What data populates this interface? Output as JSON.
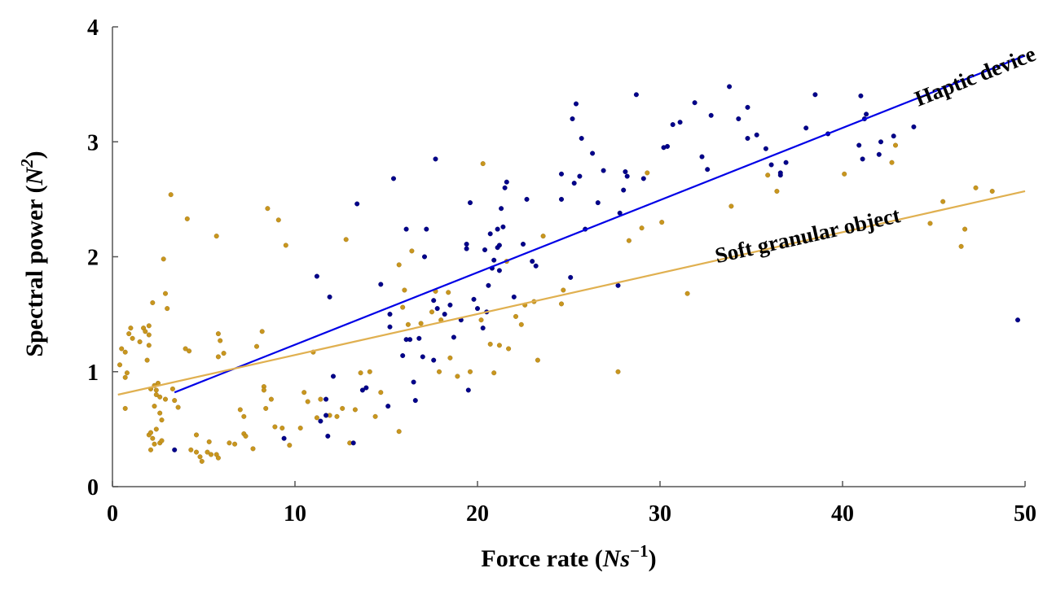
{
  "chart_data": {
    "type": "scatter",
    "title": "",
    "xlabel": "Force rate",
    "xlabel_unit": "Ns",
    "xlabel_unit_exp": "−1",
    "ylabel": "Spectral power",
    "ylabel_unit": "N",
    "ylabel_unit_exp": "2",
    "xlim": [
      0,
      50
    ],
    "ylim": [
      0,
      4
    ],
    "xticks": [
      0,
      10,
      20,
      30,
      40,
      50
    ],
    "yticks": [
      0,
      1,
      2,
      3,
      4
    ],
    "grid": false,
    "legend": "none",
    "series": [
      {
        "name": "Haptic device",
        "color": "#00008B",
        "points": [
          [
            3.4,
            0.32
          ],
          [
            9.4,
            0.42
          ],
          [
            11.2,
            1.83
          ],
          [
            11.8,
            0.44
          ],
          [
            11.7,
            0.62
          ],
          [
            11.9,
            1.65
          ],
          [
            12.1,
            0.96
          ],
          [
            11.4,
            0.57
          ],
          [
            11.7,
            0.76
          ],
          [
            13.2,
            0.38
          ],
          [
            13.4,
            2.46
          ],
          [
            13.7,
            0.84
          ],
          [
            13.9,
            0.86
          ],
          [
            14.7,
            1.76
          ],
          [
            15.1,
            0.7
          ],
          [
            15.2,
            1.5
          ],
          [
            15.2,
            1.39
          ],
          [
            15.4,
            2.68
          ],
          [
            15.9,
            1.14
          ],
          [
            16.1,
            2.24
          ],
          [
            16.1,
            1.28
          ],
          [
            16.3,
            1.28
          ],
          [
            16.5,
            0.91
          ],
          [
            16.6,
            0.75
          ],
          [
            16.8,
            1.29
          ],
          [
            17.0,
            1.13
          ],
          [
            17.1,
            2.0
          ],
          [
            17.2,
            2.24
          ],
          [
            17.6,
            1.62
          ],
          [
            17.7,
            2.85
          ],
          [
            17.6,
            1.1
          ],
          [
            17.8,
            1.55
          ],
          [
            18.2,
            1.5
          ],
          [
            18.5,
            1.58
          ],
          [
            18.7,
            1.3
          ],
          [
            19.1,
            1.45
          ],
          [
            19.4,
            2.11
          ],
          [
            19.4,
            2.07
          ],
          [
            19.5,
            0.84
          ],
          [
            19.6,
            2.47
          ],
          [
            19.8,
            1.63
          ],
          [
            20.0,
            1.55
          ],
          [
            20.3,
            1.38
          ],
          [
            20.4,
            2.06
          ],
          [
            20.5,
            1.52
          ],
          [
            20.6,
            1.75
          ],
          [
            20.7,
            2.2
          ],
          [
            20.8,
            1.9
          ],
          [
            20.9,
            1.97
          ],
          [
            21.1,
            2.08
          ],
          [
            21.1,
            2.24
          ],
          [
            21.2,
            1.88
          ],
          [
            21.2,
            2.1
          ],
          [
            21.3,
            2.42
          ],
          [
            21.4,
            2.26
          ],
          [
            21.5,
            2.6
          ],
          [
            21.6,
            2.65
          ],
          [
            22.0,
            1.65
          ],
          [
            22.5,
            2.11
          ],
          [
            22.7,
            2.5
          ],
          [
            23.0,
            1.96
          ],
          [
            23.2,
            1.92
          ],
          [
            24.6,
            2.72
          ],
          [
            24.6,
            2.5
          ],
          [
            25.1,
            1.82
          ],
          [
            25.3,
            2.64
          ],
          [
            25.4,
            3.33
          ],
          [
            25.2,
            3.2
          ],
          [
            25.6,
            2.7
          ],
          [
            25.7,
            3.03
          ],
          [
            25.9,
            2.24
          ],
          [
            26.3,
            2.9
          ],
          [
            26.6,
            2.47
          ],
          [
            26.9,
            2.75
          ],
          [
            27.7,
            1.75
          ],
          [
            27.8,
            2.38
          ],
          [
            28.0,
            2.58
          ],
          [
            28.1,
            2.74
          ],
          [
            28.2,
            2.7
          ],
          [
            28.7,
            3.41
          ],
          [
            29.1,
            2.68
          ],
          [
            30.2,
            2.95
          ],
          [
            30.4,
            2.96
          ],
          [
            30.7,
            3.15
          ],
          [
            31.1,
            3.17
          ],
          [
            31.9,
            3.34
          ],
          [
            32.3,
            2.87
          ],
          [
            32.6,
            2.76
          ],
          [
            32.8,
            3.23
          ],
          [
            33.8,
            3.48
          ],
          [
            34.3,
            3.2
          ],
          [
            34.8,
            3.3
          ],
          [
            34.8,
            3.03
          ],
          [
            35.3,
            3.06
          ],
          [
            35.8,
            2.94
          ],
          [
            36.1,
            2.8
          ],
          [
            36.6,
            2.71
          ],
          [
            36.9,
            2.82
          ],
          [
            36.6,
            2.73
          ],
          [
            38.0,
            3.12
          ],
          [
            38.5,
            3.41
          ],
          [
            39.2,
            3.07
          ],
          [
            40.9,
            2.97
          ],
          [
            41.0,
            3.4
          ],
          [
            41.1,
            2.85
          ],
          [
            41.2,
            3.2
          ],
          [
            41.3,
            3.24
          ],
          [
            42.0,
            2.89
          ],
          [
            42.1,
            3.0
          ],
          [
            42.8,
            3.05
          ],
          [
            43.9,
            3.13
          ],
          [
            49.6,
            1.45
          ]
        ],
        "fit": {
          "x": [
            3.4,
            50
          ],
          "y": [
            0.82,
            3.75
          ]
        }
      },
      {
        "name": "Soft granular object",
        "color": "#C8961E",
        "points": [
          [
            0.4,
            1.06
          ],
          [
            0.5,
            1.2
          ],
          [
            0.7,
            0.95
          ],
          [
            0.7,
            0.68
          ],
          [
            0.7,
            1.17
          ],
          [
            0.8,
            0.99
          ],
          [
            0.9,
            1.33
          ],
          [
            1.0,
            1.38
          ],
          [
            1.1,
            1.29
          ],
          [
            1.5,
            1.26
          ],
          [
            1.7,
            1.38
          ],
          [
            1.8,
            1.35
          ],
          [
            1.9,
            1.1
          ],
          [
            2.0,
            1.23
          ],
          [
            2.0,
            1.32
          ],
          [
            2.0,
            1.4
          ],
          [
            2.0,
            0.45
          ],
          [
            2.1,
            0.47
          ],
          [
            2.1,
            0.85
          ],
          [
            2.1,
            0.32
          ],
          [
            2.2,
            1.6
          ],
          [
            2.2,
            0.42
          ],
          [
            2.3,
            0.37
          ],
          [
            2.3,
            0.7
          ],
          [
            2.3,
            0.88
          ],
          [
            2.4,
            0.8
          ],
          [
            2.4,
            0.84
          ],
          [
            2.4,
            0.5
          ],
          [
            2.5,
            0.9
          ],
          [
            2.6,
            0.78
          ],
          [
            2.6,
            0.64
          ],
          [
            2.6,
            0.38
          ],
          [
            2.7,
            0.4
          ],
          [
            2.7,
            0.58
          ],
          [
            2.8,
            1.98
          ],
          [
            2.9,
            0.76
          ],
          [
            2.9,
            1.68
          ],
          [
            3.0,
            1.55
          ],
          [
            3.2,
            2.54
          ],
          [
            3.3,
            0.85
          ],
          [
            3.4,
            0.75
          ],
          [
            3.6,
            0.69
          ],
          [
            4.0,
            1.2
          ],
          [
            4.1,
            2.33
          ],
          [
            4.2,
            1.18
          ],
          [
            4.3,
            0.32
          ],
          [
            4.6,
            0.45
          ],
          [
            4.6,
            0.3
          ],
          [
            4.8,
            0.26
          ],
          [
            4.9,
            0.22
          ],
          [
            5.2,
            0.3
          ],
          [
            5.3,
            0.39
          ],
          [
            5.4,
            0.28
          ],
          [
            5.7,
            0.28
          ],
          [
            5.7,
            2.18
          ],
          [
            5.8,
            0.25
          ],
          [
            5.8,
            1.33
          ],
          [
            5.8,
            1.13
          ],
          [
            5.9,
            1.27
          ],
          [
            6.1,
            1.16
          ],
          [
            6.4,
            0.38
          ],
          [
            6.7,
            0.37
          ],
          [
            7.0,
            0.67
          ],
          [
            7.2,
            0.61
          ],
          [
            7.2,
            0.46
          ],
          [
            7.3,
            0.44
          ],
          [
            7.7,
            0.33
          ],
          [
            7.9,
            1.22
          ],
          [
            8.2,
            1.35
          ],
          [
            8.3,
            0.87
          ],
          [
            8.3,
            0.84
          ],
          [
            8.4,
            0.68
          ],
          [
            8.5,
            2.42
          ],
          [
            8.7,
            0.76
          ],
          [
            8.9,
            0.52
          ],
          [
            9.1,
            2.32
          ],
          [
            9.3,
            0.51
          ],
          [
            9.5,
            2.1
          ],
          [
            9.7,
            0.36
          ],
          [
            10.3,
            0.51
          ],
          [
            10.5,
            0.82
          ],
          [
            10.7,
            0.74
          ],
          [
            11.0,
            1.17
          ],
          [
            11.2,
            0.6
          ],
          [
            11.4,
            0.76
          ],
          [
            11.9,
            0.62
          ],
          [
            12.3,
            0.61
          ],
          [
            12.6,
            0.68
          ],
          [
            12.8,
            2.15
          ],
          [
            13.0,
            0.38
          ],
          [
            13.3,
            0.67
          ],
          [
            13.6,
            0.99
          ],
          [
            14.1,
            1.0
          ],
          [
            14.4,
            0.61
          ],
          [
            14.7,
            0.82
          ],
          [
            15.7,
            0.48
          ],
          [
            15.7,
            1.93
          ],
          [
            15.9,
            1.56
          ],
          [
            16.0,
            1.71
          ],
          [
            16.2,
            1.41
          ],
          [
            16.4,
            2.05
          ],
          [
            16.9,
            1.42
          ],
          [
            17.5,
            1.52
          ],
          [
            17.7,
            1.7
          ],
          [
            17.9,
            1.0
          ],
          [
            18.0,
            1.45
          ],
          [
            18.4,
            1.69
          ],
          [
            18.5,
            1.12
          ],
          [
            18.9,
            0.96
          ],
          [
            19.6,
            1.0
          ],
          [
            20.2,
            1.45
          ],
          [
            20.3,
            2.81
          ],
          [
            20.7,
            1.24
          ],
          [
            20.9,
            0.99
          ],
          [
            21.2,
            1.23
          ],
          [
            21.6,
            1.96
          ],
          [
            21.7,
            1.2
          ],
          [
            22.1,
            1.48
          ],
          [
            22.4,
            1.41
          ],
          [
            22.6,
            1.58
          ],
          [
            23.1,
            1.61
          ],
          [
            23.3,
            1.1
          ],
          [
            23.6,
            2.18
          ],
          [
            24.6,
            1.59
          ],
          [
            24.7,
            1.71
          ],
          [
            27.7,
            1.0
          ],
          [
            28.3,
            2.14
          ],
          [
            29.0,
            2.25
          ],
          [
            29.3,
            2.73
          ],
          [
            30.1,
            2.3
          ],
          [
            31.5,
            1.68
          ],
          [
            33.9,
            2.44
          ],
          [
            35.9,
            2.71
          ],
          [
            36.4,
            2.57
          ],
          [
            40.1,
            2.72
          ],
          [
            42.7,
            2.82
          ],
          [
            42.9,
            2.97
          ],
          [
            44.8,
            2.29
          ],
          [
            45.5,
            2.48
          ],
          [
            46.5,
            2.09
          ],
          [
            46.7,
            2.24
          ],
          [
            47.3,
            2.6
          ],
          [
            48.2,
            2.57
          ]
        ],
        "fit": {
          "x": [
            0.3,
            50
          ],
          "y": [
            0.8,
            2.57
          ]
        }
      }
    ],
    "annotations": [
      {
        "text": "Haptic device",
        "series": 0
      },
      {
        "text": "Soft granular object",
        "series": 1
      }
    ]
  }
}
